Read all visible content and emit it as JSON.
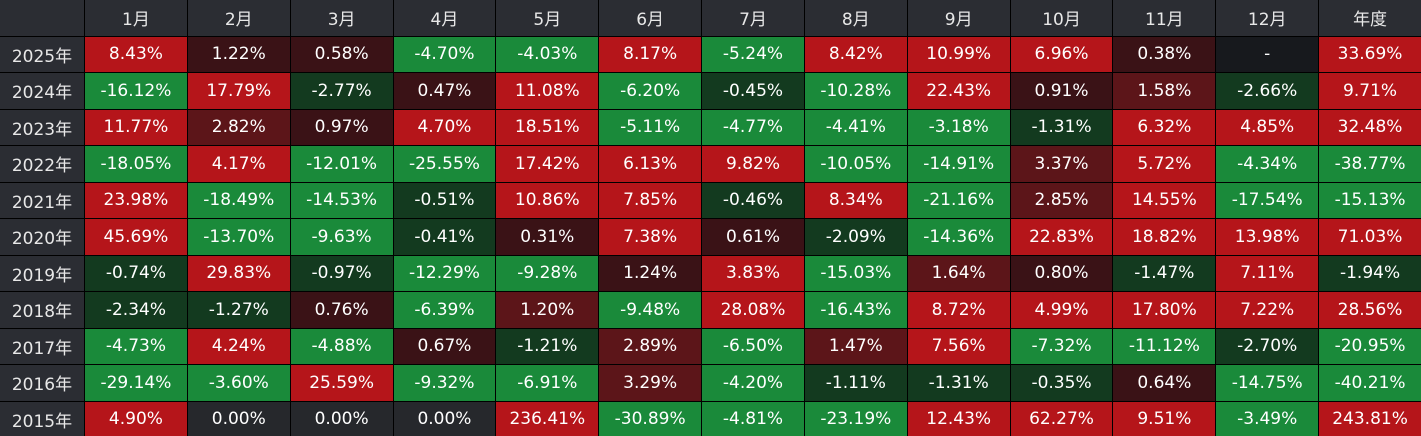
{
  "header": {
    "months": [
      "1月",
      "2月",
      "3月",
      "4月",
      "5月",
      "6月",
      "7月",
      "8月",
      "9月",
      "10月",
      "11月",
      "12月"
    ],
    "annual": "年度"
  },
  "colors": {
    "strong_red": "#b5151a",
    "dark_red": "#3a1216",
    "mid_red": "#5c1519",
    "strong_green": "#1a8a3a",
    "dark_green": "#133a1f",
    "mid_green": "#136a2c",
    "neutral": "#26282c",
    "empty": "#17191d"
  },
  "rows": [
    {
      "year": "2025年",
      "cells": [
        {
          "v": "8.43%",
          "c": "strong_red"
        },
        {
          "v": "1.22%",
          "c": "dark_red"
        },
        {
          "v": "0.58%",
          "c": "dark_red"
        },
        {
          "v": "-4.70%",
          "c": "strong_green"
        },
        {
          "v": "-4.03%",
          "c": "strong_green"
        },
        {
          "v": "8.17%",
          "c": "strong_red"
        },
        {
          "v": "-5.24%",
          "c": "strong_green"
        },
        {
          "v": "8.42%",
          "c": "strong_red"
        },
        {
          "v": "10.99%",
          "c": "strong_red"
        },
        {
          "v": "6.96%",
          "c": "strong_red"
        },
        {
          "v": "0.38%",
          "c": "dark_red"
        },
        {
          "v": "-",
          "c": "empty"
        },
        {
          "v": "33.69%",
          "c": "strong_red"
        }
      ]
    },
    {
      "year": "2024年",
      "cells": [
        {
          "v": "-16.12%",
          "c": "strong_green"
        },
        {
          "v": "17.79%",
          "c": "strong_red"
        },
        {
          "v": "-2.77%",
          "c": "dark_green"
        },
        {
          "v": "0.47%",
          "c": "dark_red"
        },
        {
          "v": "11.08%",
          "c": "strong_red"
        },
        {
          "v": "-6.20%",
          "c": "strong_green"
        },
        {
          "v": "-0.45%",
          "c": "dark_green"
        },
        {
          "v": "-10.28%",
          "c": "strong_green"
        },
        {
          "v": "22.43%",
          "c": "strong_red"
        },
        {
          "v": "0.91%",
          "c": "dark_red"
        },
        {
          "v": "1.58%",
          "c": "mid_red"
        },
        {
          "v": "-2.66%",
          "c": "dark_green"
        },
        {
          "v": "9.71%",
          "c": "strong_red"
        }
      ]
    },
    {
      "year": "2023年",
      "cells": [
        {
          "v": "11.77%",
          "c": "strong_red"
        },
        {
          "v": "2.82%",
          "c": "mid_red"
        },
        {
          "v": "0.97%",
          "c": "dark_red"
        },
        {
          "v": "4.70%",
          "c": "strong_red"
        },
        {
          "v": "18.51%",
          "c": "strong_red"
        },
        {
          "v": "-5.11%",
          "c": "strong_green"
        },
        {
          "v": "-4.77%",
          "c": "strong_green"
        },
        {
          "v": "-4.41%",
          "c": "strong_green"
        },
        {
          "v": "-3.18%",
          "c": "strong_green"
        },
        {
          "v": "-1.31%",
          "c": "dark_green"
        },
        {
          "v": "6.32%",
          "c": "strong_red"
        },
        {
          "v": "4.85%",
          "c": "strong_red"
        },
        {
          "v": "32.48%",
          "c": "strong_red"
        }
      ]
    },
    {
      "year": "2022年",
      "cells": [
        {
          "v": "-18.05%",
          "c": "strong_green"
        },
        {
          "v": "4.17%",
          "c": "strong_red"
        },
        {
          "v": "-12.01%",
          "c": "strong_green"
        },
        {
          "v": "-25.55%",
          "c": "strong_green"
        },
        {
          "v": "17.42%",
          "c": "strong_red"
        },
        {
          "v": "6.13%",
          "c": "strong_red"
        },
        {
          "v": "9.82%",
          "c": "strong_red"
        },
        {
          "v": "-10.05%",
          "c": "strong_green"
        },
        {
          "v": "-14.91%",
          "c": "strong_green"
        },
        {
          "v": "3.37%",
          "c": "mid_red"
        },
        {
          "v": "5.72%",
          "c": "strong_red"
        },
        {
          "v": "-4.34%",
          "c": "strong_green"
        },
        {
          "v": "-38.77%",
          "c": "strong_green"
        }
      ]
    },
    {
      "year": "2021年",
      "cells": [
        {
          "v": "23.98%",
          "c": "strong_red"
        },
        {
          "v": "-18.49%",
          "c": "strong_green"
        },
        {
          "v": "-14.53%",
          "c": "strong_green"
        },
        {
          "v": "-0.51%",
          "c": "dark_green"
        },
        {
          "v": "10.86%",
          "c": "strong_red"
        },
        {
          "v": "7.85%",
          "c": "strong_red"
        },
        {
          "v": "-0.46%",
          "c": "dark_green"
        },
        {
          "v": "8.34%",
          "c": "strong_red"
        },
        {
          "v": "-21.16%",
          "c": "strong_green"
        },
        {
          "v": "2.85%",
          "c": "mid_red"
        },
        {
          "v": "14.55%",
          "c": "strong_red"
        },
        {
          "v": "-17.54%",
          "c": "strong_green"
        },
        {
          "v": "-15.13%",
          "c": "strong_green"
        }
      ]
    },
    {
      "year": "2020年",
      "cells": [
        {
          "v": "45.69%",
          "c": "strong_red"
        },
        {
          "v": "-13.70%",
          "c": "strong_green"
        },
        {
          "v": "-9.63%",
          "c": "strong_green"
        },
        {
          "v": "-0.41%",
          "c": "dark_green"
        },
        {
          "v": "0.31%",
          "c": "dark_red"
        },
        {
          "v": "7.38%",
          "c": "strong_red"
        },
        {
          "v": "0.61%",
          "c": "dark_red"
        },
        {
          "v": "-2.09%",
          "c": "dark_green"
        },
        {
          "v": "-14.36%",
          "c": "strong_green"
        },
        {
          "v": "22.83%",
          "c": "strong_red"
        },
        {
          "v": "18.82%",
          "c": "strong_red"
        },
        {
          "v": "13.98%",
          "c": "strong_red"
        },
        {
          "v": "71.03%",
          "c": "strong_red"
        }
      ]
    },
    {
      "year": "2019年",
      "cells": [
        {
          "v": "-0.74%",
          "c": "dark_green"
        },
        {
          "v": "29.83%",
          "c": "strong_red"
        },
        {
          "v": "-0.97%",
          "c": "dark_green"
        },
        {
          "v": "-12.29%",
          "c": "strong_green"
        },
        {
          "v": "-9.28%",
          "c": "strong_green"
        },
        {
          "v": "1.24%",
          "c": "dark_red"
        },
        {
          "v": "3.83%",
          "c": "strong_red"
        },
        {
          "v": "-15.03%",
          "c": "strong_green"
        },
        {
          "v": "1.64%",
          "c": "mid_red"
        },
        {
          "v": "0.80%",
          "c": "dark_red"
        },
        {
          "v": "-1.47%",
          "c": "dark_green"
        },
        {
          "v": "7.11%",
          "c": "strong_red"
        },
        {
          "v": "-1.94%",
          "c": "dark_green"
        }
      ]
    },
    {
      "year": "2018年",
      "cells": [
        {
          "v": "-2.34%",
          "c": "dark_green"
        },
        {
          "v": "-1.27%",
          "c": "dark_green"
        },
        {
          "v": "0.76%",
          "c": "dark_red"
        },
        {
          "v": "-6.39%",
          "c": "strong_green"
        },
        {
          "v": "1.20%",
          "c": "mid_red"
        },
        {
          "v": "-9.48%",
          "c": "strong_green"
        },
        {
          "v": "28.08%",
          "c": "strong_red"
        },
        {
          "v": "-16.43%",
          "c": "strong_green"
        },
        {
          "v": "8.72%",
          "c": "strong_red"
        },
        {
          "v": "4.99%",
          "c": "strong_red"
        },
        {
          "v": "17.80%",
          "c": "strong_red"
        },
        {
          "v": "7.22%",
          "c": "strong_red"
        },
        {
          "v": "28.56%",
          "c": "strong_red"
        }
      ]
    },
    {
      "year": "2017年",
      "cells": [
        {
          "v": "-4.73%",
          "c": "strong_green"
        },
        {
          "v": "4.24%",
          "c": "strong_red"
        },
        {
          "v": "-4.88%",
          "c": "strong_green"
        },
        {
          "v": "0.67%",
          "c": "dark_red"
        },
        {
          "v": "-1.21%",
          "c": "dark_green"
        },
        {
          "v": "2.89%",
          "c": "mid_red"
        },
        {
          "v": "-6.50%",
          "c": "strong_green"
        },
        {
          "v": "1.47%",
          "c": "mid_red"
        },
        {
          "v": "7.56%",
          "c": "strong_red"
        },
        {
          "v": "-7.32%",
          "c": "strong_green"
        },
        {
          "v": "-11.12%",
          "c": "strong_green"
        },
        {
          "v": "-2.70%",
          "c": "dark_green"
        },
        {
          "v": "-20.95%",
          "c": "strong_green"
        }
      ]
    },
    {
      "year": "2016年",
      "cells": [
        {
          "v": "-29.14%",
          "c": "strong_green"
        },
        {
          "v": "-3.60%",
          "c": "strong_green"
        },
        {
          "v": "25.59%",
          "c": "strong_red"
        },
        {
          "v": "-9.32%",
          "c": "strong_green"
        },
        {
          "v": "-6.91%",
          "c": "strong_green"
        },
        {
          "v": "3.29%",
          "c": "mid_red"
        },
        {
          "v": "-4.20%",
          "c": "strong_green"
        },
        {
          "v": "-1.11%",
          "c": "dark_green"
        },
        {
          "v": "-1.31%",
          "c": "dark_green"
        },
        {
          "v": "-0.35%",
          "c": "dark_green"
        },
        {
          "v": "0.64%",
          "c": "dark_red"
        },
        {
          "v": "-14.75%",
          "c": "strong_green"
        },
        {
          "v": "-40.21%",
          "c": "strong_green"
        }
      ]
    },
    {
      "year": "2015年",
      "cells": [
        {
          "v": "4.90%",
          "c": "strong_red"
        },
        {
          "v": "0.00%",
          "c": "neutral"
        },
        {
          "v": "0.00%",
          "c": "neutral"
        },
        {
          "v": "0.00%",
          "c": "neutral"
        },
        {
          "v": "236.41%",
          "c": "strong_red"
        },
        {
          "v": "-30.89%",
          "c": "strong_green"
        },
        {
          "v": "-4.81%",
          "c": "strong_green"
        },
        {
          "v": "-23.19%",
          "c": "strong_green"
        },
        {
          "v": "12.43%",
          "c": "strong_red"
        },
        {
          "v": "62.27%",
          "c": "strong_red"
        },
        {
          "v": "9.51%",
          "c": "strong_red"
        },
        {
          "v": "-3.49%",
          "c": "strong_green"
        },
        {
          "v": "243.81%",
          "c": "strong_red"
        }
      ]
    }
  ]
}
